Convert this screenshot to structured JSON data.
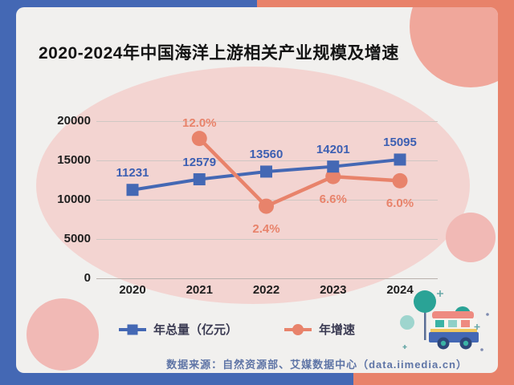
{
  "title": "2020-2024年中国海洋上游相关产业规模及增速",
  "chart_data": {
    "type": "line",
    "title": "2020-2024年中国海洋上游相关产业规模及增速",
    "categories": [
      "2020",
      "2021",
      "2022",
      "2023",
      "2024"
    ],
    "series": [
      {
        "name": "年总量（亿元）",
        "marker": "square",
        "color": "#4468b4",
        "label_color": "#3c5fb2",
        "axis": "left",
        "values": [
          11231,
          12579,
          13560,
          14201,
          15095
        ],
        "labels": [
          "11231",
          "12579",
          "13560",
          "14201",
          "15095"
        ]
      },
      {
        "name": "年增速",
        "marker": "circle",
        "color": "#e8836b",
        "label_color": "#e8836b",
        "axis": "right",
        "values": [
          null,
          12.0,
          2.4,
          6.6,
          6.0
        ],
        "labels": [
          "",
          "12.0%",
          "2.4%",
          "6.6%",
          "6.0%"
        ]
      }
    ],
    "left_axis": {
      "ticks": [
        20000,
        15000,
        10000,
        5000,
        0
      ],
      "min": 0,
      "max": 20000
    },
    "right_axis": {
      "unit": "%",
      "labels_shown": false
    },
    "grid": true,
    "legend_position": "bottom"
  },
  "legend": {
    "items": [
      {
        "label": "年总量（亿元）",
        "marker": "square",
        "color": "#4468b4"
      },
      {
        "label": "年增速",
        "marker": "circle",
        "color": "#e8836b"
      }
    ]
  },
  "footer": {
    "source": "数据来源：自然资源部、艾媒数据中心（data.iimedia.cn）"
  },
  "colors": {
    "frame_blue": "#4468b4",
    "frame_salmon": "#e8826a",
    "card_bg": "#f1f0ee",
    "pink_blob": "#f3d4d1",
    "pink_circle": "#f1b9b5",
    "salmon_circle": "#f0a79b",
    "source_text": "#5e74a6"
  }
}
